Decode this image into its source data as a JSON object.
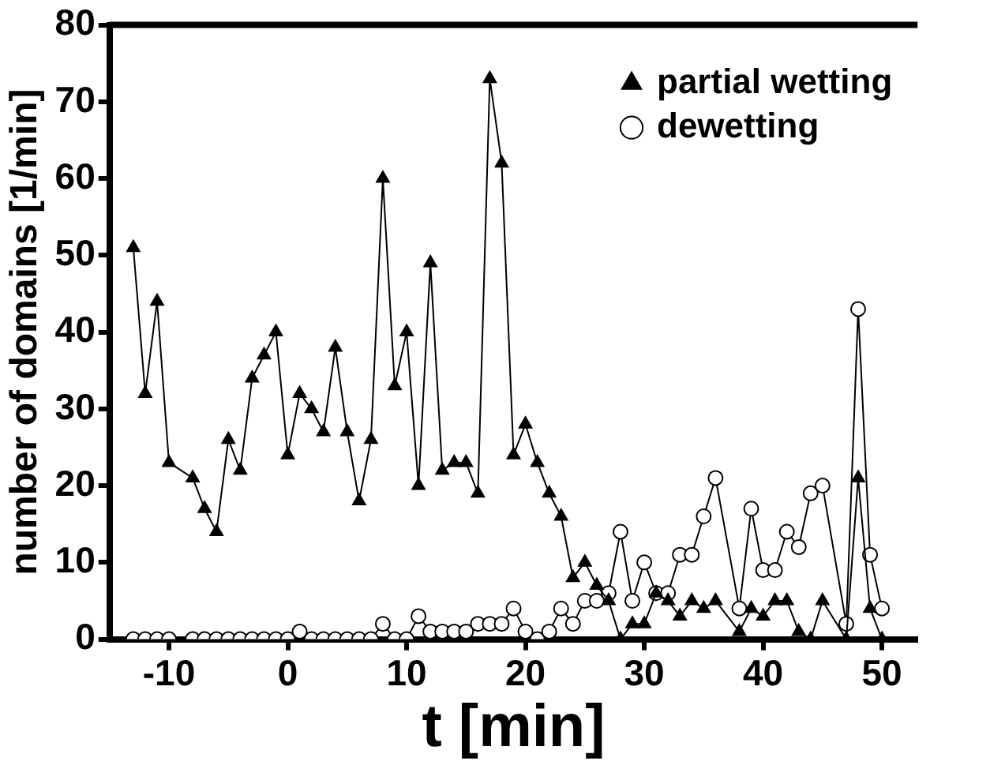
{
  "chart_data": {
    "type": "line",
    "xlabel": "t [min]",
    "ylabel": "number of domains [1/min]",
    "xlim": [
      -15,
      53
    ],
    "xticks": [
      -10,
      0,
      10,
      20,
      30,
      40,
      50
    ],
    "ylim": [
      0,
      80
    ],
    "yticks": [
      0,
      10,
      20,
      30,
      40,
      50,
      60,
      70,
      80
    ],
    "grid": false,
    "legend": "top right",
    "line_style": "solid",
    "series": [
      {
        "name": "partial wetting",
        "color": "#000000",
        "marker": "triangle",
        "x": [
          -13,
          -12,
          -11,
          -10,
          -8,
          -7,
          -6,
          -5,
          -4,
          -3,
          -2,
          -1,
          0,
          1,
          2,
          3,
          4,
          5,
          6,
          7,
          8,
          9,
          10,
          11,
          12,
          13,
          14,
          15,
          16,
          17,
          18,
          19,
          20,
          21,
          22,
          23,
          24,
          25,
          26,
          27,
          28,
          29,
          30,
          31,
          32,
          33,
          34,
          35,
          36,
          38,
          39,
          40,
          41,
          42,
          43,
          44,
          45,
          47,
          48,
          49,
          50
        ],
        "values": [
          51,
          32,
          44,
          23,
          21,
          17,
          14,
          26,
          22,
          34,
          37,
          40,
          24,
          32,
          30,
          27,
          38,
          27,
          18,
          26,
          60,
          33,
          40,
          20,
          49,
          22,
          23,
          23,
          19,
          73,
          62,
          24,
          28,
          23,
          19,
          16,
          8,
          10,
          7,
          5,
          0,
          2,
          2,
          6,
          5,
          3,
          5,
          4,
          5,
          1,
          4,
          3,
          5,
          5,
          1,
          0,
          5,
          0,
          21,
          4,
          0
        ]
      },
      {
        "name": "dewetting",
        "color": "#000000",
        "marker": "circle",
        "x": [
          -13,
          -12,
          -11,
          -10,
          -8,
          -7,
          -6,
          -5,
          -4,
          -3,
          -2,
          -1,
          0,
          1,
          2,
          3,
          4,
          5,
          6,
          7,
          8,
          9,
          10,
          11,
          12,
          13,
          14,
          15,
          16,
          17,
          18,
          19,
          20,
          21,
          22,
          23,
          24,
          25,
          26,
          27,
          28,
          29,
          30,
          31,
          32,
          33,
          34,
          35,
          36,
          38,
          39,
          40,
          41,
          42,
          43,
          44,
          45,
          47,
          48,
          49,
          50
        ],
        "values": [
          0,
          0,
          0,
          0,
          0,
          0,
          0,
          0,
          0,
          0,
          0,
          0,
          0,
          1,
          0,
          0,
          0,
          0,
          0,
          0,
          2,
          0,
          0,
          3,
          1,
          1,
          1,
          1,
          2,
          2,
          2,
          4,
          1,
          0,
          1,
          4,
          2,
          5,
          5,
          6,
          14,
          5,
          10,
          6,
          6,
          11,
          11,
          16,
          21,
          4,
          17,
          9,
          9,
          14,
          12,
          19,
          20,
          2,
          43,
          11,
          4
        ]
      }
    ]
  }
}
